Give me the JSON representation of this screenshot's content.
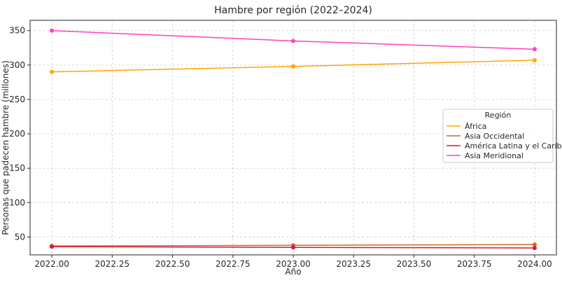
{
  "chart_data": {
    "type": "line",
    "title": "Hambre por región (2022–2024)",
    "xlabel": "Año",
    "ylabel": "Personas que padecen hambre (millones)",
    "x": [
      2022,
      2023,
      2024
    ],
    "xlim": [
      2021.91,
      2024.09
    ],
    "ylim": [
      24,
      365
    ],
    "xticks": [
      2022.0,
      2022.25,
      2022.5,
      2022.75,
      2023.0,
      2023.25,
      2023.5,
      2023.75,
      2024.0
    ],
    "xtick_labels": [
      "2022.00",
      "2022.25",
      "2022.50",
      "2022.75",
      "2023.00",
      "2023.25",
      "2023.50",
      "2023.75",
      "2024.00"
    ],
    "yticks": [
      50,
      100,
      150,
      200,
      250,
      300,
      350
    ],
    "ytick_labels": [
      "50",
      "100",
      "150",
      "200",
      "250",
      "300",
      "350"
    ],
    "grid": true,
    "legend": {
      "title": "Región",
      "placement": "center-right"
    },
    "series": [
      {
        "name": "África",
        "color": "#ffa500",
        "values": [
          290,
          298,
          307
        ]
      },
      {
        "name": "Asia Occidental",
        "color": "#d2691e",
        "values": [
          37,
          38,
          39
        ]
      },
      {
        "name": "América Latina y el Caribe",
        "color": "#dc143c",
        "values": [
          36,
          35,
          34
        ]
      },
      {
        "name": "Asia Meridional",
        "color": "#ff40c0",
        "values": [
          350,
          335,
          323
        ]
      }
    ]
  }
}
